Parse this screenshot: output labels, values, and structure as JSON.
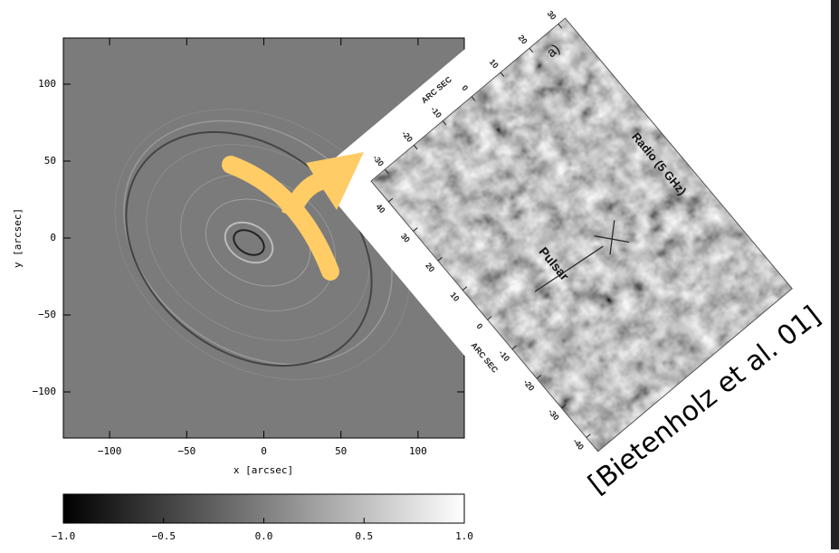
{
  "left_plot": {
    "xlabel": "x [arcsec]",
    "ylabel": "y [arcsec]",
    "xlim": [
      -130,
      130
    ],
    "ylim": [
      -130,
      130
    ],
    "xticks": [
      {
        "value": -100,
        "label": "−100"
      },
      {
        "value": -50,
        "label": "−50"
      },
      0,
      50,
      100
    ],
    "yticks": [
      {
        "value": -100,
        "label": "−100"
      },
      {
        "value": -50,
        "label": "−50"
      },
      0,
      50,
      100
    ]
  },
  "colorbar": {
    "lim": [
      -1,
      1
    ],
    "ticks": [
      {
        "value": -1,
        "label": "−1.0"
      },
      {
        "value": -0.5,
        "label": "−0.5"
      },
      {
        "value": 0,
        "label": "0.0"
      },
      {
        "value": 0.5,
        "label": "0.5"
      },
      {
        "value": 1,
        "label": "1.0"
      }
    ]
  },
  "inset": {
    "panel_label": "a)",
    "top_axis_label": "ARC SEC",
    "left_axis_label": "ARC SEC",
    "pulsar_label": "Pulsar",
    "radio_label": "Radio (5 GHz)",
    "top_ticks": [
      30,
      20,
      10,
      0,
      -10,
      -20,
      -30
    ],
    "left_ticks": [
      40,
      30,
      20,
      10,
      0,
      -10,
      -20,
      -30,
      -40
    ]
  },
  "citation": "[Bietenholz et al. 01]"
}
